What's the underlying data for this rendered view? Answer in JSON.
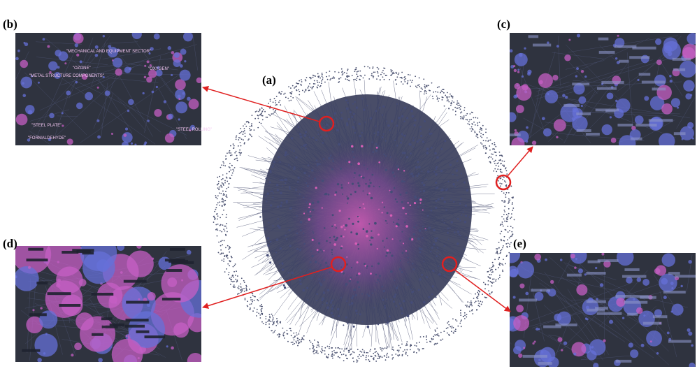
{
  "panels": {
    "a": "(a)",
    "b": "(b)",
    "c": "(c)",
    "d": "(d)",
    "e": "(e)"
  },
  "inset_b_labels": [
    "\"MECHANICAL AND EQUIPMENT SECTOR\"",
    "\"OZONE\"",
    "\"OXYGEN\"",
    "\"METAL STRUCTURE COMPONENTS\"",
    "\"STEEL PLATE\"",
    "\"FORMALDEHYDE\"",
    "\"STEEL ROLLING\""
  ]
}
